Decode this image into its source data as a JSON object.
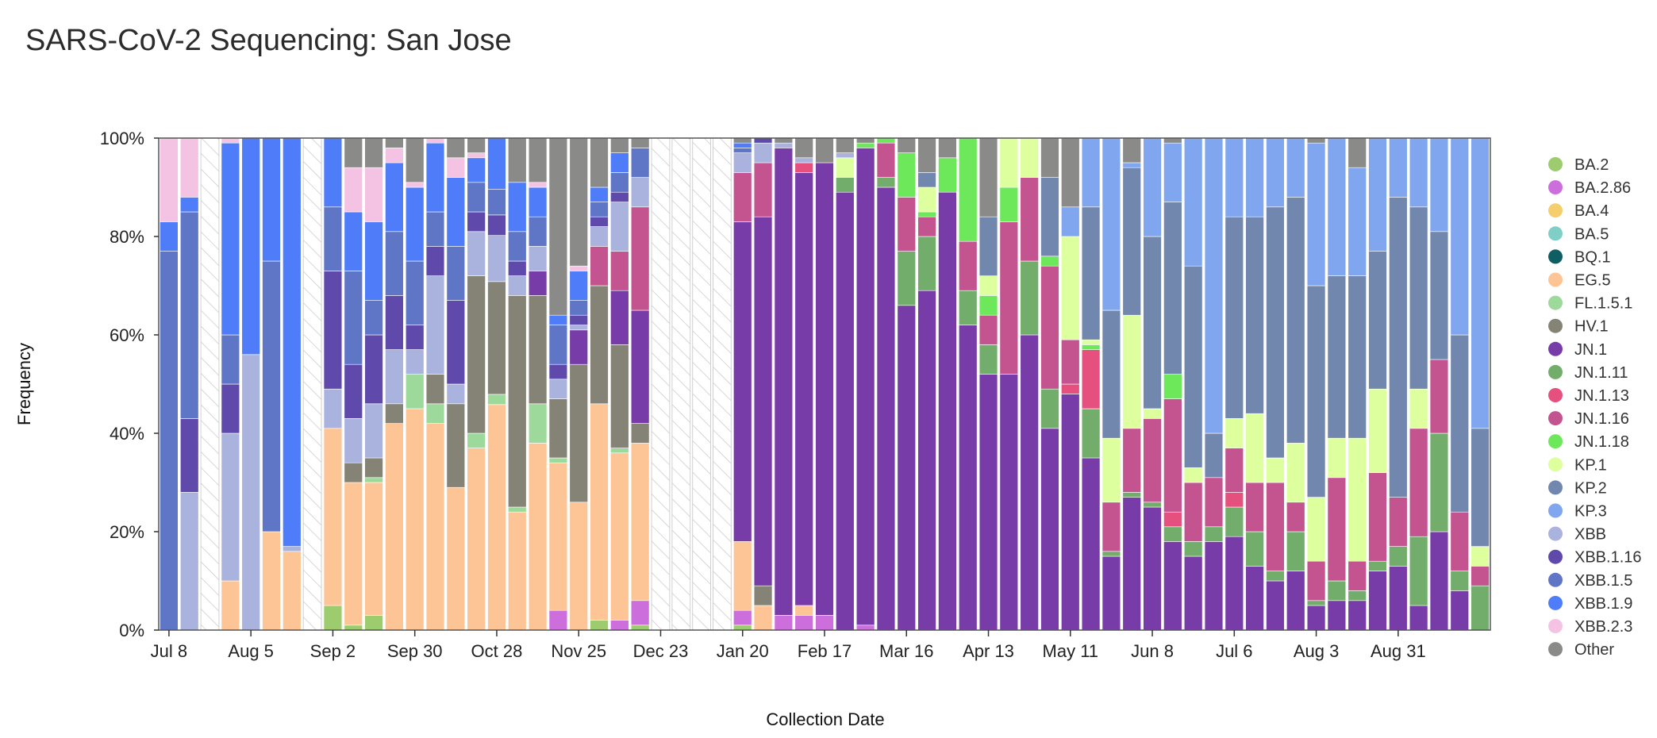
{
  "chart_data": {
    "type": "bar",
    "stacked": true,
    "title": "SARS-CoV-2 Sequencing: San Jose",
    "xlabel": "Collection Date",
    "ylabel": "Frequency",
    "ylim": [
      0,
      100
    ],
    "y_ticks": [
      "0%",
      "20%",
      "40%",
      "60%",
      "80%",
      "100%"
    ],
    "x_ticks": [
      {
        "label": "Jul 8",
        "index": 0
      },
      {
        "label": "Aug 5",
        "index": 4
      },
      {
        "label": "Sep 2",
        "index": 8
      },
      {
        "label": "Sep 30",
        "index": 12
      },
      {
        "label": "Oct 28",
        "index": 16
      },
      {
        "label": "Nov 25",
        "index": 20
      },
      {
        "label": "Dec 23",
        "index": 24
      },
      {
        "label": "Jan 20",
        "index": 28
      },
      {
        "label": "Feb 17",
        "index": 32
      },
      {
        "label": "Mar 16",
        "index": 36
      },
      {
        "label": "Apr 13",
        "index": 40
      },
      {
        "label": "May 11",
        "index": 44
      },
      {
        "label": "Jun 8",
        "index": 48
      },
      {
        "label": "Jul 6",
        "index": 52
      },
      {
        "label": "Aug 3",
        "index": 56
      },
      {
        "label": "Aug 31",
        "index": 60
      }
    ],
    "legend_position": "right",
    "variants": [
      "BA.2",
      "BA.2.86",
      "BA.4",
      "BA.5",
      "BQ.1",
      "EG.5",
      "FL.1.5.1",
      "HV.1",
      "JN.1",
      "JN.1.11",
      "JN.1.13",
      "JN.1.16",
      "JN.1.18",
      "KP.1",
      "KP.2",
      "KP.3",
      "XBB",
      "XBB.1.16",
      "XBB.1.5",
      "XBB.1.9",
      "XBB.2.3",
      "Other"
    ],
    "colors": {
      "BA.2": "#9dcc6e",
      "BA.2.86": "#cc6edc",
      "BA.4": "#f5cf6b",
      "BA.5": "#7fcfc6",
      "BQ.1": "#0f5e63",
      "EG.5": "#fdc595",
      "FL.1.5.1": "#9ed99c",
      "HV.1": "#848375",
      "JN.1": "#773ca7",
      "JN.1.11": "#73ad6c",
      "JN.1.13": "#e6507e",
      "JN.1.16": "#c3548f",
      "JN.1.18": "#6de85a",
      "KP.1": "#deff9d",
      "KP.2": "#7287ae",
      "KP.3": "#80a6ef",
      "XBB": "#a9b3de",
      "XBB.1.16": "#5f49ab",
      "XBB.1.5": "#5f76c7",
      "XBB.1.9": "#4f7cf8",
      "XBB.2.3": "#f4c3e3",
      "Other": "#8a8a88"
    },
    "weeks": [
      {
        "XBB.1.5": 77,
        "XBB.1.9": 6,
        "XBB.2.3": 17
      },
      {
        "XBB": 28,
        "XBB.1.16": 15,
        "XBB.1.5": 42,
        "XBB.1.9": 3,
        "XBB.2.3": 12
      },
      null,
      {
        "EG.5": 10,
        "XBB": 30,
        "XBB.1.16": 10,
        "XBB.1.5": 10,
        "XBB.1.9": 39,
        "XBB.2.3": 1
      },
      {
        "XBB": 56,
        "XBB.1.9": 44
      },
      {
        "EG.5": 20,
        "XBB.1.5": 55,
        "XBB.1.9": 25
      },
      {
        "EG.5": 16,
        "XBB": 1,
        "XBB.1.9": 83
      },
      null,
      {
        "BA.2": 5,
        "EG.5": 36,
        "XBB": 8,
        "XBB.1.16": 24,
        "XBB.1.5": 13,
        "XBB.1.9": 14
      },
      {
        "BA.2": 1,
        "EG.5": 29,
        "HV.1": 4,
        "XBB": 9,
        "XBB.1.16": 11,
        "XBB.1.5": 19,
        "XBB.1.9": 12,
        "XBB.2.3": 9,
        "Other": 6
      },
      {
        "BA.2": 3,
        "EG.5": 27,
        "FL.1.5.1": 1,
        "HV.1": 4,
        "XBB": 11,
        "XBB.1.16": 14,
        "XBB.1.5": 7,
        "XBB.1.9": 16,
        "XBB.2.3": 11,
        "Other": 6
      },
      {
        "EG.5": 42,
        "HV.1": 4,
        "XBB": 11,
        "XBB.1.16": 11,
        "XBB.1.5": 13,
        "XBB.1.9": 14,
        "XBB.2.3": 3,
        "Other": 2
      },
      {
        "EG.5": 45,
        "FL.1.5.1": 7,
        "XBB": 5,
        "XBB.1.16": 5,
        "XBB.1.5": 13,
        "XBB.1.9": 15,
        "XBB.2.3": 1,
        "Other": 9
      },
      {
        "EG.5": 42,
        "FL.1.5.1": 4,
        "HV.1": 6,
        "XBB": 20,
        "XBB.1.16": 6,
        "XBB.1.5": 7,
        "XBB.1.9": 14,
        "XBB.2.3": 1
      },
      {
        "EG.5": 29,
        "HV.1": 17,
        "XBB": 4,
        "XBB.1.16": 17,
        "XBB.1.5": 11,
        "XBB.1.9": 14,
        "XBB.2.3": 4,
        "Other": 4
      },
      {
        "EG.5": 37,
        "FL.1.5.1": 3,
        "HV.1": 32,
        "XBB": 9,
        "XBB.1.16": 4,
        "XBB.1.5": 6,
        "XBB.1.9": 5,
        "XBB.2.3": 1,
        "Other": 3
      },
      {
        "EG.5": 44,
        "FL.1.5.1": 2,
        "HV.1": 22,
        "XBB": 9,
        "XBB.1.16": 4,
        "XBB.1.5": 5,
        "XBB.1.9": 10
      },
      {
        "EG.5": 24,
        "FL.1.5.1": 1,
        "HV.1": 43,
        "XBB": 4,
        "XBB.1.16": 3,
        "XBB.1.5": 6,
        "XBB.1.9": 10,
        "Other": 9
      },
      {
        "EG.5": 38,
        "FL.1.5.1": 8,
        "HV.1": 22,
        "JN.1": 5,
        "XBB": 5,
        "XBB.1.5": 6,
        "XBB.1.9": 6,
        "XBB.2.3": 1,
        "Other": 9
      },
      {
        "BA.2.86": 4,
        "EG.5": 30,
        "FL.1.5.1": 1,
        "HV.1": 12,
        "XBB": 4,
        "XBB.1.16": 3,
        "XBB.1.5": 8,
        "XBB.1.9": 2,
        "Other": 36
      },
      {
        "EG.5": 26,
        "HV.1": 28,
        "JN.1": 7,
        "XBB": 1,
        "XBB.1.16": 2,
        "XBB.1.5": 3,
        "XBB.1.9": 6,
        "XBB.2.3": 1,
        "Other": 26
      },
      {
        "BA.2": 2,
        "EG.5": 44,
        "HV.1": 24,
        "JN.1.16": 8,
        "XBB": 4,
        "XBB.1.16": 2,
        "XBB.1.5": 3,
        "XBB.1.9": 3,
        "Other": 10
      },
      {
        "BA.2.86": 2,
        "EG.5": 34,
        "FL.1.5.1": 1,
        "HV.1": 21,
        "JN.1": 11,
        "JN.1.16": 8,
        "XBB": 10,
        "XBB.1.16": 2,
        "XBB.1.5": 4,
        "XBB.1.9": 4,
        "Other": 3
      },
      {
        "BA.2": 1,
        "BA.2.86": 5,
        "EG.5": 32,
        "HV.1": 4,
        "JN.1": 23,
        "JN.1.16": 21,
        "XBB": 6,
        "XBB.1.5": 6,
        "Other": 2
      },
      null,
      null,
      null,
      null,
      {
        "BA.2.86": 3,
        "EG.5": 14,
        "JN.1": 65,
        "JN.1.16": 10,
        "BA.2": 1,
        "XBB": 4,
        "XBB.1.5": 1,
        "XBB.1.9": 1,
        "Other": 1
      },
      {
        "EG.5": 5,
        "HV.1": 4,
        "JN.1": 75,
        "JN.1.16": 11,
        "XBB": 4,
        "XBB.1.16": 1
      },
      {
        "BA.2.86": 3,
        "JN.1": 95,
        "XBB": 1,
        "Other": 1
      },
      {
        "BA.2.86": 3,
        "EG.5": 2,
        "JN.1": 88,
        "JN.1.13": 2,
        "XBB": 1,
        "Other": 4
      },
      {
        "BA.2.86": 3,
        "JN.1": 92,
        "Other": 5
      },
      {
        "JN.1": 89,
        "JN.1.11": 3,
        "KP.1": 4,
        "XBB": 1,
        "Other": 3
      },
      {
        "BA.2.86": 1,
        "JN.1": 97,
        "JN.1.18": 1,
        "Other": 1
      },
      {
        "JN.1": 90,
        "JN.1.11": 2,
        "JN.1.16": 7,
        "JN.1.18": 1
      },
      {
        "JN.1": 66,
        "JN.1.11": 11,
        "JN.1.16": 11,
        "JN.1.18": 9,
        "Other": 3
      },
      {
        "JN.1": 69,
        "JN.1.11": 11,
        "JN.1.16": 4,
        "JN.1.18": 1,
        "KP.1": 5,
        "KP.2": 3,
        "Other": 7
      },
      {
        "JN.1": 89,
        "JN.1.18": 7,
        "Other": 4
      },
      {
        "JN.1": 62,
        "JN.1.11": 7,
        "JN.1.16": 10,
        "JN.1.18": 21
      },
      {
        "JN.1": 52,
        "JN.1.11": 6,
        "JN.1.16": 6,
        "JN.1.18": 4,
        "KP.1": 4,
        "KP.2": 12,
        "Other": 16
      },
      {
        "JN.1": 52,
        "JN.1.16": 31,
        "JN.1.18": 7,
        "KP.1": 10
      },
      {
        "JN.1": 60,
        "JN.1.11": 15,
        "JN.1.16": 17,
        "KP.1": 8
      },
      {
        "JN.1": 41,
        "JN.1.11": 8,
        "JN.1.16": 25,
        "JN.1.18": 2,
        "KP.2": 16,
        "Other": 8
      },
      {
        "JN.1": 48,
        "JN.1.13": 2,
        "JN.1.16": 9,
        "KP.1": 21,
        "KP.3": 6,
        "Other": 14
      },
      {
        "JN.1": 35,
        "JN.1.11": 10,
        "JN.1.13": 12,
        "JN.1.18": 1,
        "KP.1": 1,
        "KP.2": 27,
        "KP.3": 14
      },
      {
        "JN.1": 15,
        "JN.1.11": 1,
        "JN.1.16": 10,
        "KP.1": 13,
        "KP.2": 26,
        "KP.3": 35
      },
      {
        "JN.1": 27,
        "JN.1.11": 1,
        "JN.1.16": 13,
        "KP.1": 23,
        "KP.2": 30,
        "KP.3": 1,
        "Other": 5
      },
      {
        "JN.1": 25,
        "JN.1.11": 1,
        "JN.1.16": 17,
        "KP.1": 2,
        "KP.2": 35,
        "KP.3": 20
      },
      {
        "JN.1": 18,
        "JN.1.11": 3,
        "JN.1.13": 3,
        "JN.1.16": 23,
        "JN.1.18": 5,
        "KP.2": 35,
        "KP.3": 12,
        "Other": 1
      },
      {
        "JN.1": 15,
        "JN.1.11": 3,
        "JN.1.16": 12,
        "KP.1": 3,
        "KP.2": 41,
        "KP.3": 26
      },
      {
        "JN.1": 18,
        "JN.1.11": 3,
        "JN.1.16": 10,
        "KP.2": 9,
        "KP.3": 60
      },
      {
        "JN.1": 19,
        "JN.1.11": 6,
        "JN.1.13": 3,
        "JN.1.16": 9,
        "KP.1": 6,
        "KP.2": 41,
        "KP.3": 16
      },
      {
        "JN.1": 13,
        "JN.1.11": 7,
        "JN.1.16": 10,
        "KP.1": 14,
        "KP.2": 40,
        "KP.3": 16
      },
      {
        "JN.1": 10,
        "JN.1.11": 2,
        "JN.1.16": 18,
        "KP.1": 5,
        "KP.2": 51,
        "KP.3": 14
      },
      {
        "JN.1": 12,
        "JN.1.11": 8,
        "JN.1.16": 6,
        "KP.1": 12,
        "KP.2": 50,
        "KP.3": 12
      },
      {
        "JN.1": 5,
        "JN.1.11": 1,
        "JN.1.16": 8,
        "KP.1": 13,
        "KP.2": 43,
        "KP.3": 29,
        "Other": 1
      },
      {
        "JN.1": 6,
        "JN.1.11": 4,
        "JN.1.16": 21,
        "KP.1": 8,
        "KP.2": 33,
        "KP.3": 28
      },
      {
        "JN.1": 6,
        "JN.1.11": 2,
        "JN.1.16": 6,
        "KP.1": 25,
        "KP.2": 33,
        "KP.3": 22,
        "Other": 6
      },
      {
        "JN.1": 12,
        "JN.1.11": 2,
        "JN.1.16": 18,
        "KP.1": 17,
        "KP.2": 28,
        "KP.3": 23
      },
      {
        "JN.1": 13,
        "JN.1.11": 4,
        "JN.1.16": 10,
        "KP.2": 61,
        "KP.3": 12
      },
      {
        "JN.1": 5,
        "JN.1.11": 14,
        "JN.1.16": 22,
        "KP.1": 8,
        "KP.2": 37,
        "KP.3": 14
      },
      {
        "JN.1": 20,
        "JN.1.11": 20,
        "JN.1.16": 15,
        "KP.2": 26,
        "KP.3": 19
      },
      {
        "JN.1": 8,
        "JN.1.11": 4,
        "JN.1.16": 12,
        "KP.2": 36,
        "KP.3": 40
      },
      {
        "JN.1.11": 9,
        "JN.1.16": 4,
        "KP.1": 4,
        "KP.2": 24,
        "KP.3": 59
      }
    ]
  }
}
